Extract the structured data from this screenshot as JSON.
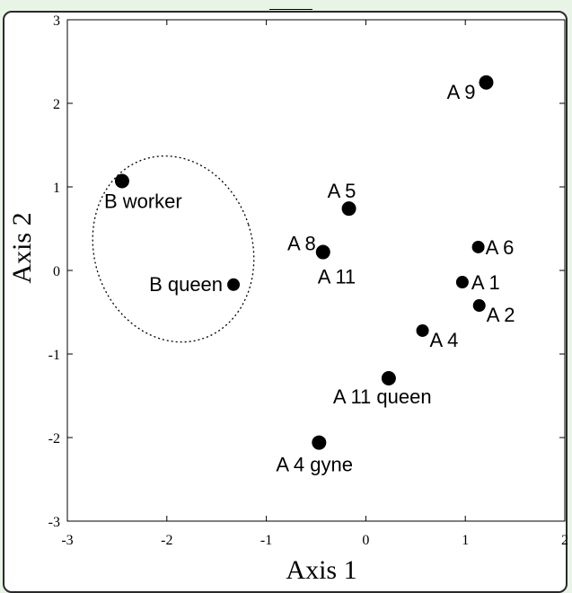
{
  "chart_data": {
    "type": "scatter",
    "xlabel": "Axis 1",
    "ylabel": "Axis 2",
    "xlim": [
      -3,
      2
    ],
    "ylim": [
      -3,
      3
    ],
    "xticks": [
      "-3",
      "-2",
      "-1",
      "0",
      "1",
      "2"
    ],
    "yticks": [
      "3",
      "2",
      "1",
      "0",
      "-1",
      "-2",
      "-3"
    ],
    "grid": false,
    "points": [
      {
        "label": "B worker",
        "x": -2.45,
        "y": 1.07
      },
      {
        "label": "B queen",
        "x": -1.33,
        "y": -0.17
      },
      {
        "label": "A 9",
        "x": 1.21,
        "y": 2.25
      },
      {
        "label": "A 5",
        "x": -0.17,
        "y": 0.74
      },
      {
        "label": "A 8",
        "x": -0.43,
        "y": 0.22
      },
      {
        "label": "A 11",
        "x": -0.43,
        "y": 0.22
      },
      {
        "label": "A 6",
        "x": 1.13,
        "y": 0.28
      },
      {
        "label": "A 1",
        "x": 0.97,
        "y": -0.14
      },
      {
        "label": "A 2",
        "x": 1.14,
        "y": -0.42
      },
      {
        "label": "A 4",
        "x": 0.57,
        "y": -0.72
      },
      {
        "label": "A 11 queen",
        "x": 0.23,
        "y": -1.29
      },
      {
        "label": "A 4 gyne",
        "x": -0.47,
        "y": -2.06
      }
    ],
    "annotations": [
      {
        "type": "dotted-ellipse",
        "encloses": [
          "B worker",
          "B queen"
        ]
      }
    ]
  }
}
